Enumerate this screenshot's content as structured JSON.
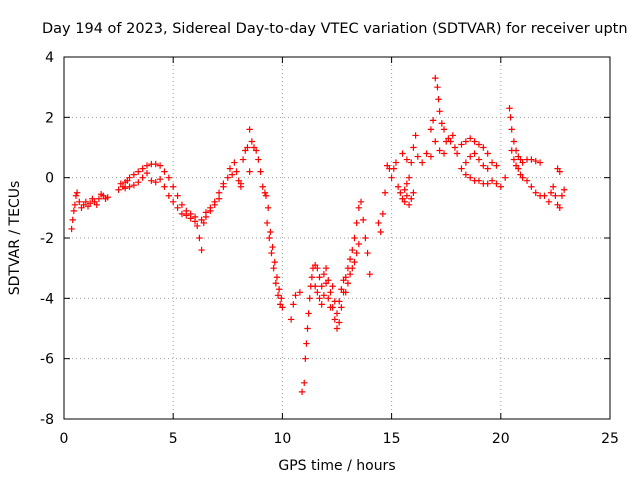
{
  "chart_data": {
    "type": "scatter",
    "title": "Day 194 of 2023, Sidereal Day-to-day VTEC variation (SDTVAR) for receiver uptn",
    "xlabel": "GPS time / hours",
    "ylabel": "SDTVAR / TECUs",
    "xlim": [
      0,
      25
    ],
    "ylim": [
      -8,
      4
    ],
    "xticks": [
      "0",
      "5",
      "10",
      "15",
      "20",
      "25"
    ],
    "yticks": [
      "-8",
      "-6",
      "-4",
      "-2",
      "0",
      "2",
      "4"
    ],
    "grid": true,
    "marker": "+",
    "color": "#ff0000",
    "series": [
      {
        "name": "SDTVAR",
        "points": [
          [
            0.35,
            -1.7
          ],
          [
            0.4,
            -1.4
          ],
          [
            0.45,
            -1.1
          ],
          [
            0.5,
            -0.9
          ],
          [
            0.55,
            -0.6
          ],
          [
            0.6,
            -0.5
          ],
          [
            0.7,
            -0.8
          ],
          [
            0.8,
            -1.0
          ],
          [
            0.9,
            -0.9
          ],
          [
            1.0,
            -0.8
          ],
          [
            1.1,
            -0.95
          ],
          [
            1.2,
            -0.85
          ],
          [
            1.3,
            -0.7
          ],
          [
            1.4,
            -0.8
          ],
          [
            1.5,
            -0.9
          ],
          [
            1.6,
            -0.7
          ],
          [
            1.7,
            -0.55
          ],
          [
            1.8,
            -0.6
          ],
          [
            1.9,
            -0.7
          ],
          [
            2.0,
            -0.65
          ],
          [
            2.5,
            -0.4
          ],
          [
            2.6,
            -0.2
          ],
          [
            2.7,
            -0.3
          ],
          [
            2.8,
            -0.15
          ],
          [
            2.9,
            -0.1
          ],
          [
            3.0,
            0.0
          ],
          [
            3.2,
            0.1
          ],
          [
            3.4,
            0.2
          ],
          [
            3.6,
            0.3
          ],
          [
            3.8,
            0.4
          ],
          [
            4.0,
            0.45
          ],
          [
            4.2,
            0.45
          ],
          [
            4.4,
            0.4
          ],
          [
            4.6,
            0.2
          ],
          [
            4.8,
            0.0
          ],
          [
            5.0,
            -0.3
          ],
          [
            5.2,
            -0.6
          ],
          [
            5.4,
            -0.9
          ],
          [
            5.6,
            -1.1
          ],
          [
            5.8,
            -1.2
          ],
          [
            6.0,
            -1.3
          ],
          [
            6.1,
            -1.6
          ],
          [
            6.2,
            -2.0
          ],
          [
            6.3,
            -2.4
          ],
          [
            6.4,
            -1.5
          ],
          [
            6.5,
            -1.3
          ],
          [
            6.7,
            -1.0
          ],
          [
            6.9,
            -0.9
          ],
          [
            7.1,
            -0.7
          ],
          [
            7.3,
            -0.3
          ],
          [
            7.5,
            0.0
          ],
          [
            7.7,
            0.1
          ],
          [
            7.9,
            0.2
          ],
          [
            8.1,
            -0.2
          ],
          [
            8.2,
            0.6
          ],
          [
            8.3,
            0.9
          ],
          [
            8.4,
            1.0
          ],
          [
            8.5,
            0.2
          ],
          [
            2.8,
            -0.35
          ],
          [
            3.0,
            -0.3
          ],
          [
            3.2,
            -0.25
          ],
          [
            3.4,
            -0.15
          ],
          [
            3.6,
            0.0
          ],
          [
            3.8,
            0.15
          ],
          [
            4.0,
            -0.1
          ],
          [
            4.2,
            -0.15
          ],
          [
            4.4,
            -0.05
          ],
          [
            4.6,
            -0.3
          ],
          [
            4.8,
            -0.6
          ],
          [
            5.0,
            -0.8
          ],
          [
            5.2,
            -1.0
          ],
          [
            5.4,
            -1.2
          ],
          [
            5.6,
            -1.25
          ],
          [
            5.8,
            -1.35
          ],
          [
            6.0,
            -1.45
          ],
          [
            6.3,
            -1.4
          ],
          [
            6.5,
            -1.15
          ],
          [
            6.7,
            -1.1
          ],
          [
            6.9,
            -0.8
          ],
          [
            7.1,
            -0.5
          ],
          [
            7.3,
            -0.2
          ],
          [
            7.6,
            0.3
          ],
          [
            7.8,
            0.5
          ],
          [
            8.0,
            -0.1
          ],
          [
            8.1,
            -0.3
          ],
          [
            8.5,
            1.6
          ],
          [
            8.6,
            1.2
          ],
          [
            8.7,
            1.0
          ],
          [
            8.8,
            0.9
          ],
          [
            8.9,
            0.6
          ],
          [
            9.0,
            0.2
          ],
          [
            9.1,
            -0.3
          ],
          [
            9.2,
            -0.5
          ],
          [
            9.3,
            -1.5
          ],
          [
            9.4,
            -2.0
          ],
          [
            9.5,
            -2.5
          ],
          [
            9.6,
            -3.0
          ],
          [
            9.7,
            -3.5
          ],
          [
            9.8,
            -3.9
          ],
          [
            9.9,
            -4.2
          ],
          [
            10.0,
            -4.3
          ],
          [
            9.25,
            -0.6
          ],
          [
            9.35,
            -1.0
          ],
          [
            9.45,
            -1.8
          ],
          [
            9.55,
            -2.3
          ],
          [
            9.65,
            -2.8
          ],
          [
            9.75,
            -3.3
          ],
          [
            9.85,
            -3.7
          ],
          [
            9.95,
            -4.0
          ],
          [
            10.4,
            -4.7
          ],
          [
            10.5,
            -4.2
          ],
          [
            10.6,
            -3.9
          ],
          [
            10.8,
            -3.8
          ],
          [
            10.9,
            -7.1
          ],
          [
            11.0,
            -6.8
          ],
          [
            11.05,
            -6.0
          ],
          [
            11.1,
            -5.5
          ],
          [
            11.15,
            -5.0
          ],
          [
            11.2,
            -4.5
          ],
          [
            11.25,
            -4.0
          ],
          [
            11.3,
            -3.6
          ],
          [
            11.35,
            -3.3
          ],
          [
            11.4,
            -3.0
          ],
          [
            11.5,
            -2.9
          ],
          [
            11.6,
            -3.0
          ],
          [
            11.7,
            -3.3
          ],
          [
            11.8,
            -3.6
          ],
          [
            11.9,
            -3.2
          ],
          [
            12.0,
            -3.0
          ],
          [
            12.1,
            -3.4
          ],
          [
            12.2,
            -3.8
          ],
          [
            12.3,
            -4.3
          ],
          [
            12.4,
            -4.7
          ],
          [
            12.5,
            -5.0
          ],
          [
            12.6,
            -4.8
          ],
          [
            12.7,
            -4.3
          ],
          [
            12.8,
            -3.8
          ],
          [
            12.9,
            -3.3
          ],
          [
            13.0,
            -3.0
          ],
          [
            13.1,
            -2.7
          ],
          [
            13.2,
            -2.4
          ],
          [
            13.3,
            -2.0
          ],
          [
            13.4,
            -1.5
          ],
          [
            13.5,
            -1.0
          ],
          [
            13.6,
            -0.8
          ],
          [
            13.7,
            -1.4
          ],
          [
            13.8,
            -2.0
          ],
          [
            13.9,
            -2.5
          ],
          [
            14.0,
            -3.2
          ],
          [
            11.5,
            -3.6
          ],
          [
            11.6,
            -3.8
          ],
          [
            11.7,
            -4.0
          ],
          [
            11.8,
            -4.2
          ],
          [
            11.9,
            -3.9
          ],
          [
            12.0,
            -3.5
          ],
          [
            12.1,
            -4.0
          ],
          [
            12.2,
            -4.3
          ],
          [
            12.3,
            -3.6
          ],
          [
            12.4,
            -4.1
          ],
          [
            12.5,
            -4.5
          ],
          [
            12.6,
            -4.1
          ],
          [
            12.7,
            -3.7
          ],
          [
            12.8,
            -3.4
          ],
          [
            12.9,
            -3.8
          ],
          [
            13.0,
            -3.5
          ],
          [
            13.1,
            -3.2
          ],
          [
            13.2,
            -3.0
          ],
          [
            13.3,
            -2.8
          ],
          [
            13.4,
            -2.5
          ],
          [
            13.5,
            -2.2
          ],
          [
            14.4,
            -1.5
          ],
          [
            14.5,
            -1.8
          ],
          [
            14.6,
            -1.2
          ],
          [
            14.7,
            -0.5
          ],
          [
            14.8,
            0.4
          ],
          [
            14.9,
            0.3
          ],
          [
            15.0,
            0.0
          ],
          [
            15.1,
            0.3
          ],
          [
            15.2,
            0.5
          ],
          [
            15.3,
            -0.3
          ],
          [
            15.4,
            -0.5
          ],
          [
            15.5,
            -0.7
          ],
          [
            15.6,
            -0.8
          ],
          [
            15.7,
            -0.6
          ],
          [
            15.8,
            -0.9
          ],
          [
            15.9,
            -0.7
          ],
          [
            16.0,
            -0.5
          ],
          [
            15.6,
            -0.4
          ],
          [
            15.7,
            -0.2
          ],
          [
            15.8,
            0.0
          ],
          [
            15.5,
            0.8
          ],
          [
            15.7,
            0.6
          ],
          [
            15.9,
            0.5
          ],
          [
            16.0,
            1.0
          ],
          [
            16.1,
            1.4
          ],
          [
            16.2,
            0.7
          ],
          [
            16.4,
            0.5
          ],
          [
            16.6,
            0.8
          ],
          [
            16.8,
            1.6
          ],
          [
            16.9,
            1.9
          ],
          [
            17.0,
            3.3
          ],
          [
            17.1,
            3.0
          ],
          [
            17.15,
            2.6
          ],
          [
            17.2,
            2.2
          ],
          [
            17.3,
            1.8
          ],
          [
            17.4,
            1.6
          ],
          [
            17.5,
            1.2
          ],
          [
            17.6,
            1.3
          ],
          [
            17.7,
            1.2
          ],
          [
            17.8,
            1.4
          ],
          [
            17.9,
            1.0
          ],
          [
            18.0,
            0.8
          ],
          [
            16.8,
            0.7
          ],
          [
            17.0,
            1.2
          ],
          [
            17.2,
            0.9
          ],
          [
            17.4,
            0.8
          ],
          [
            18.2,
            1.1
          ],
          [
            18.4,
            1.2
          ],
          [
            18.6,
            1.3
          ],
          [
            18.8,
            1.2
          ],
          [
            19.0,
            1.1
          ],
          [
            19.2,
            1.0
          ],
          [
            19.4,
            0.8
          ],
          [
            19.6,
            0.5
          ],
          [
            19.8,
            0.4
          ],
          [
            18.4,
            0.5
          ],
          [
            18.6,
            0.7
          ],
          [
            18.8,
            0.8
          ],
          [
            19.0,
            0.6
          ],
          [
            19.2,
            0.4
          ],
          [
            19.4,
            0.3
          ],
          [
            18.2,
            0.3
          ],
          [
            18.4,
            0.1
          ],
          [
            18.6,
            0.0
          ],
          [
            18.8,
            -0.1
          ],
          [
            19.0,
            -0.1
          ],
          [
            19.2,
            -0.2
          ],
          [
            19.4,
            -0.2
          ],
          [
            19.6,
            -0.1
          ],
          [
            19.8,
            -0.2
          ],
          [
            20.0,
            -0.3
          ],
          [
            20.2,
            0.0
          ],
          [
            20.4,
            2.3
          ],
          [
            20.45,
            2.0
          ],
          [
            20.5,
            1.6
          ],
          [
            20.6,
            1.2
          ],
          [
            20.7,
            0.9
          ],
          [
            20.8,
            0.7
          ],
          [
            20.9,
            0.6
          ],
          [
            21.0,
            0.5
          ],
          [
            21.2,
            0.6
          ],
          [
            21.4,
            0.6
          ],
          [
            21.6,
            0.55
          ],
          [
            21.8,
            0.5
          ],
          [
            20.5,
            0.9
          ],
          [
            20.6,
            0.6
          ],
          [
            20.7,
            0.4
          ],
          [
            20.8,
            0.3
          ],
          [
            20.9,
            0.1
          ],
          [
            21.0,
            0.0
          ],
          [
            21.2,
            -0.1
          ],
          [
            21.4,
            -0.3
          ],
          [
            21.6,
            -0.5
          ],
          [
            21.8,
            -0.6
          ],
          [
            22.0,
            -0.6
          ],
          [
            22.2,
            -0.8
          ],
          [
            22.3,
            -0.5
          ],
          [
            22.4,
            -0.3
          ],
          [
            22.5,
            -0.6
          ],
          [
            22.6,
            -0.9
          ],
          [
            22.7,
            -1.0
          ],
          [
            22.8,
            -0.6
          ],
          [
            22.9,
            -0.4
          ],
          [
            22.6,
            0.3
          ],
          [
            22.7,
            0.2
          ]
        ]
      }
    ]
  }
}
